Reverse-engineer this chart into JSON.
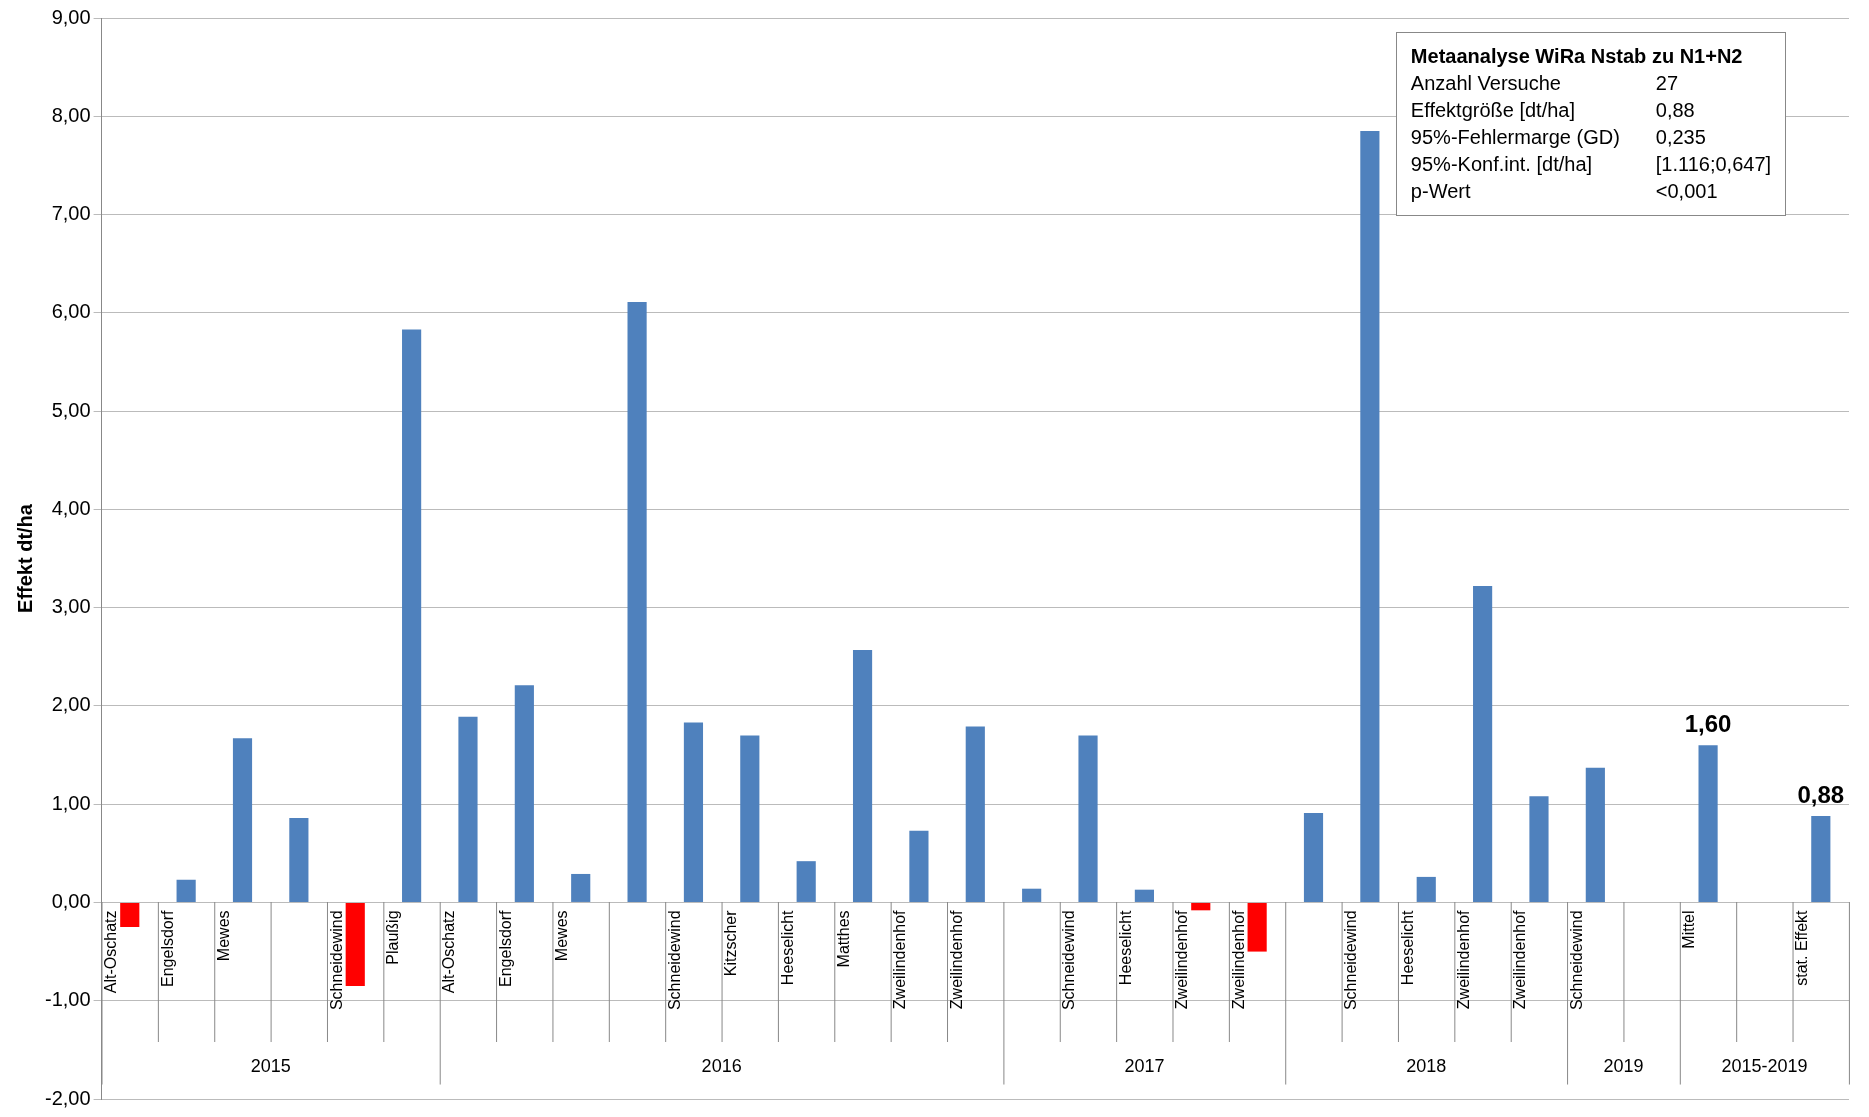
{
  "chart_data": {
    "type": "bar",
    "ylabel": "Effekt dt/ha",
    "categories": [
      "Alt-Oschatz",
      "Engelsdorf",
      "Mewes",
      null,
      "Schneidewind",
      "Plaußig",
      "Alt-Oschatz",
      "Engelsdorf",
      "Mewes",
      null,
      "Schneidewind",
      "Kitzscher",
      "Heeselicht",
      "Matthes",
      "Zweilindenhof",
      "Zweilindenhof",
      null,
      "Schneidewind",
      "Heeselicht",
      "Zweilindenhof",
      "Zweilindenhof",
      null,
      "Schneidewind",
      "Heeselicht",
      "Zweilindenhof",
      "Zweilindenhof",
      "Schneidewind",
      null,
      "Mittel",
      null,
      "stat. Effekt"
    ],
    "values": [
      -0.25,
      0.23,
      1.67,
      0.86,
      -0.85,
      5.83,
      1.89,
      2.21,
      0.29,
      6.11,
      1.83,
      1.7,
      0.42,
      2.57,
      0.73,
      1.79,
      0.14,
      1.7,
      0.13,
      -0.08,
      -0.5,
      0.91,
      7.85,
      0.26,
      3.22,
      1.08,
      1.37,
      null,
      1.6,
      null,
      0.88
    ],
    "colors": [
      "#ff0000",
      "#4f81bd",
      "#4f81bd",
      "#4f81bd",
      "#ff0000",
      "#4f81bd",
      "#4f81bd",
      "#4f81bd",
      "#4f81bd",
      "#4f81bd",
      "#4f81bd",
      "#4f81bd",
      "#4f81bd",
      "#4f81bd",
      "#4f81bd",
      "#4f81bd",
      "#4f81bd",
      "#4f81bd",
      "#4f81bd",
      "#ff0000",
      "#ff0000",
      "#4f81bd",
      "#4f81bd",
      "#4f81bd",
      "#4f81bd",
      "#4f81bd",
      "#4f81bd",
      "#4f81bd",
      "#4f81bd",
      "#4f81bd",
      "#4f81bd"
    ],
    "value_labels": [
      null,
      null,
      null,
      null,
      null,
      null,
      null,
      null,
      null,
      null,
      null,
      null,
      null,
      null,
      null,
      null,
      null,
      null,
      null,
      null,
      null,
      null,
      null,
      null,
      null,
      null,
      null,
      null,
      "1,60",
      null,
      "0,88"
    ],
    "ylim": [
      -2,
      9
    ],
    "yticks": [
      {
        "value": -2,
        "label": "-2,00"
      },
      {
        "value": -1,
        "label": "-1,00"
      },
      {
        "value": 0,
        "label": "0,00"
      },
      {
        "value": 1,
        "label": "1,00"
      },
      {
        "value": 2,
        "label": "2,00"
      },
      {
        "value": 3,
        "label": "3,00"
      },
      {
        "value": 4,
        "label": "4,00"
      },
      {
        "value": 5,
        "label": "5,00"
      },
      {
        "value": 6,
        "label": "6,00"
      },
      {
        "value": 7,
        "label": "7,00"
      },
      {
        "value": 8,
        "label": "8,00"
      },
      {
        "value": 9,
        "label": "9,00"
      }
    ],
    "grid": "y",
    "legend": false,
    "annotations": [
      "2015",
      "2016",
      "2017",
      "2018",
      "2019",
      "2015-2019",
      "Metaanalyse WiRa Nstab zu N1+N2",
      "Anzahl Versuche",
      "27",
      "Effektgröße [dt/ha]",
      "0,88",
      "95%-Fehlermarge (GD)",
      "0,235",
      "95%-Konf.int. [dt/ha]",
      "[1.116;0,647]",
      "p-Wert",
      "<0,001"
    ]
  }
}
